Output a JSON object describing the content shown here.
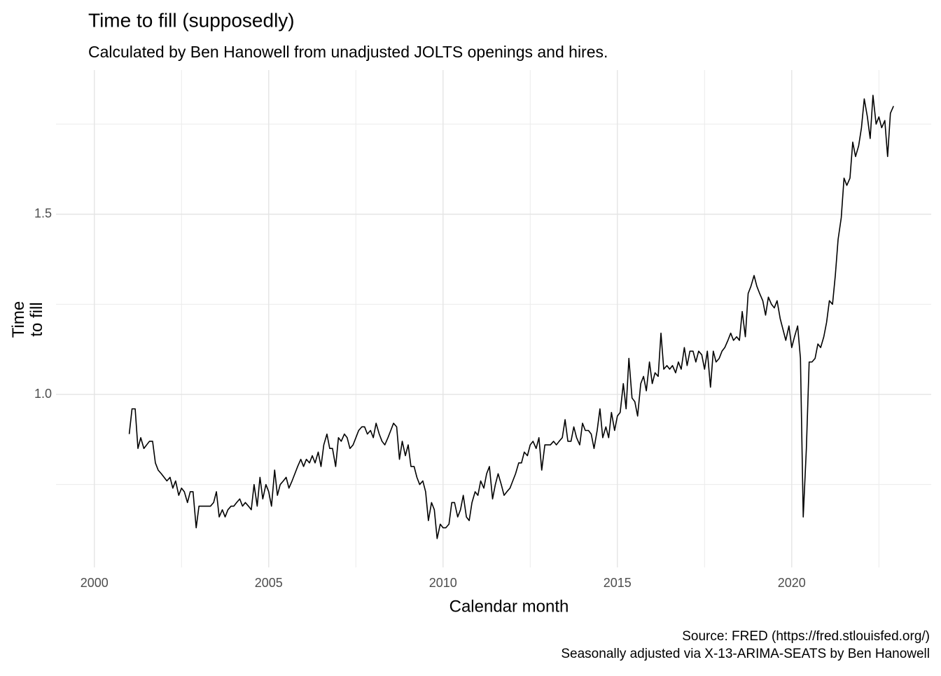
{
  "chart_data": {
    "type": "line",
    "title": "Time to fill (supposedly)",
    "subtitle": "Calculated by Ben Hanowell from unadjusted JOLTS openings and hires.",
    "x_label": "Calendar month",
    "y_label": "Time\nto fill",
    "caption": [
      "Source: FRED (https://fred.stlouisfed.org/)",
      "Seasonally adjusted via X-13-ARIMA-SEATS by Ben Hanowell"
    ],
    "color": "#000000",
    "grid": true,
    "xlim": [
      1998.9,
      2024.0
    ],
    "ylim": [
      0.52,
      1.9
    ],
    "xticks": [
      2000,
      2005,
      2010,
      2015,
      2020
    ],
    "yticks": [
      {
        "value": 1,
        "label": "1.0"
      },
      1.5
    ],
    "x_minor_gridlines": [
      2002.5,
      2007.5,
      2012.5,
      2017.5,
      2022.5
    ],
    "y_minor_gridlines": [
      0.75,
      1.25,
      1.75
    ],
    "x": [
      2001,
      2001.08,
      2001.17,
      2001.25,
      2001.33,
      2001.42,
      2001.5,
      2001.58,
      2001.67,
      2001.75,
      2001.83,
      2001.92,
      2002,
      2002.08,
      2002.17,
      2002.25,
      2002.33,
      2002.42,
      2002.5,
      2002.58,
      2002.67,
      2002.75,
      2002.83,
      2002.92,
      2003,
      2003.08,
      2003.17,
      2003.25,
      2003.33,
      2003.42,
      2003.5,
      2003.58,
      2003.67,
      2003.75,
      2003.83,
      2003.92,
      2004,
      2004.08,
      2004.17,
      2004.25,
      2004.33,
      2004.42,
      2004.5,
      2004.58,
      2004.67,
      2004.75,
      2004.83,
      2004.92,
      2005,
      2005.08,
      2005.17,
      2005.25,
      2005.33,
      2005.42,
      2005.5,
      2005.58,
      2005.67,
      2005.75,
      2005.83,
      2005.92,
      2006,
      2006.08,
      2006.17,
      2006.25,
      2006.33,
      2006.42,
      2006.5,
      2006.58,
      2006.67,
      2006.75,
      2006.83,
      2006.92,
      2007,
      2007.08,
      2007.17,
      2007.25,
      2007.33,
      2007.42,
      2007.5,
      2007.58,
      2007.67,
      2007.75,
      2007.83,
      2007.92,
      2008,
      2008.08,
      2008.17,
      2008.25,
      2008.33,
      2008.42,
      2008.5,
      2008.58,
      2008.67,
      2008.75,
      2008.83,
      2008.92,
      2009,
      2009.08,
      2009.17,
      2009.25,
      2009.33,
      2009.42,
      2009.5,
      2009.58,
      2009.67,
      2009.75,
      2009.83,
      2009.92,
      2010,
      2010.08,
      2010.17,
      2010.25,
      2010.33,
      2010.42,
      2010.5,
      2010.58,
      2010.67,
      2010.75,
      2010.83,
      2010.92,
      2011,
      2011.08,
      2011.17,
      2011.25,
      2011.33,
      2011.42,
      2011.5,
      2011.58,
      2011.67,
      2011.75,
      2011.83,
      2011.92,
      2012,
      2012.08,
      2012.17,
      2012.25,
      2012.33,
      2012.42,
      2012.5,
      2012.58,
      2012.67,
      2012.75,
      2012.83,
      2012.92,
      2013,
      2013.08,
      2013.17,
      2013.25,
      2013.33,
      2013.42,
      2013.5,
      2013.58,
      2013.67,
      2013.75,
      2013.83,
      2013.92,
      2014,
      2014.08,
      2014.17,
      2014.25,
      2014.33,
      2014.42,
      2014.5,
      2014.58,
      2014.67,
      2014.75,
      2014.83,
      2014.92,
      2015,
      2015.08,
      2015.17,
      2015.25,
      2015.33,
      2015.42,
      2015.5,
      2015.58,
      2015.67,
      2015.75,
      2015.83,
      2015.92,
      2016,
      2016.08,
      2016.17,
      2016.25,
      2016.33,
      2016.42,
      2016.5,
      2016.58,
      2016.67,
      2016.75,
      2016.83,
      2016.92,
      2017,
      2017.08,
      2017.17,
      2017.25,
      2017.33,
      2017.42,
      2017.5,
      2017.58,
      2017.67,
      2017.75,
      2017.83,
      2017.92,
      2018,
      2018.08,
      2018.17,
      2018.25,
      2018.33,
      2018.42,
      2018.5,
      2018.58,
      2018.67,
      2018.75,
      2018.83,
      2018.92,
      2019,
      2019.08,
      2019.17,
      2019.25,
      2019.33,
      2019.42,
      2019.5,
      2019.58,
      2019.67,
      2019.75,
      2019.83,
      2019.92,
      2020,
      2020.08,
      2020.17,
      2020.25,
      2020.33,
      2020.42,
      2020.5,
      2020.58,
      2020.67,
      2020.75,
      2020.83,
      2020.92,
      2021,
      2021.08,
      2021.17,
      2021.25,
      2021.33,
      2021.42,
      2021.5,
      2021.58,
      2021.67,
      2021.75,
      2021.83,
      2021.92,
      2022,
      2022.08,
      2022.17,
      2022.25,
      2022.33,
      2022.42,
      2022.5,
      2022.58,
      2022.67,
      2022.75,
      2022.83,
      2022.92
    ],
    "values": [
      0.89,
      0.96,
      0.96,
      0.85,
      0.88,
      0.85,
      0.86,
      0.87,
      0.87,
      0.81,
      0.79,
      0.78,
      0.77,
      0.76,
      0.77,
      0.74,
      0.76,
      0.72,
      0.74,
      0.73,
      0.7,
      0.73,
      0.73,
      0.63,
      0.69,
      0.69,
      0.69,
      0.69,
      0.69,
      0.7,
      0.73,
      0.66,
      0.68,
      0.66,
      0.68,
      0.69,
      0.69,
      0.7,
      0.71,
      0.69,
      0.7,
      0.69,
      0.68,
      0.75,
      0.69,
      0.77,
      0.71,
      0.75,
      0.73,
      0.69,
      0.79,
      0.72,
      0.75,
      0.76,
      0.77,
      0.74,
      0.76,
      0.78,
      0.8,
      0.82,
      0.8,
      0.82,
      0.81,
      0.83,
      0.81,
      0.84,
      0.8,
      0.86,
      0.89,
      0.85,
      0.85,
      0.8,
      0.88,
      0.87,
      0.89,
      0.88,
      0.85,
      0.86,
      0.88,
      0.9,
      0.91,
      0.91,
      0.89,
      0.9,
      0.88,
      0.92,
      0.89,
      0.87,
      0.86,
      0.88,
      0.9,
      0.92,
      0.91,
      0.82,
      0.87,
      0.83,
      0.86,
      0.8,
      0.8,
      0.77,
      0.75,
      0.76,
      0.73,
      0.65,
      0.7,
      0.68,
      0.6,
      0.64,
      0.63,
      0.63,
      0.64,
      0.7,
      0.7,
      0.66,
      0.68,
      0.72,
      0.66,
      0.65,
      0.7,
      0.73,
      0.72,
      0.76,
      0.74,
      0.78,
      0.8,
      0.71,
      0.75,
      0.78,
      0.75,
      0.72,
      0.73,
      0.74,
      0.76,
      0.78,
      0.81,
      0.81,
      0.84,
      0.83,
      0.86,
      0.87,
      0.85,
      0.88,
      0.79,
      0.86,
      0.86,
      0.86,
      0.87,
      0.86,
      0.87,
      0.88,
      0.93,
      0.87,
      0.87,
      0.91,
      0.88,
      0.86,
      0.92,
      0.9,
      0.9,
      0.89,
      0.85,
      0.9,
      0.96,
      0.88,
      0.91,
      0.88,
      0.95,
      0.9,
      0.94,
      0.95,
      1.03,
      0.96,
      1.1,
      0.99,
      0.98,
      0.94,
      1.03,
      1.05,
      1.01,
      1.09,
      1.03,
      1.06,
      1.05,
      1.17,
      1.07,
      1.08,
      1.07,
      1.08,
      1.06,
      1.09,
      1.07,
      1.13,
      1.08,
      1.12,
      1.12,
      1.09,
      1.12,
      1.11,
      1.07,
      1.12,
      1.02,
      1.12,
      1.09,
      1.1,
      1.12,
      1.13,
      1.15,
      1.17,
      1.15,
      1.16,
      1.15,
      1.23,
      1.16,
      1.28,
      1.3,
      1.33,
      1.3,
      1.28,
      1.26,
      1.22,
      1.27,
      1.25,
      1.24,
      1.26,
      1.21,
      1.18,
      1.15,
      1.19,
      1.13,
      1.16,
      1.19,
      1.1,
      0.66,
      0.85,
      1.09,
      1.09,
      1.1,
      1.14,
      1.13,
      1.16,
      1.2,
      1.26,
      1.25,
      1.33,
      1.43,
      1.49,
      1.6,
      1.58,
      1.6,
      1.7,
      1.66,
      1.69,
      1.74,
      1.82,
      1.77,
      1.71,
      1.83,
      1.75,
      1.77,
      1.74,
      1.76,
      1.66,
      1.78,
      1.8
    ]
  }
}
